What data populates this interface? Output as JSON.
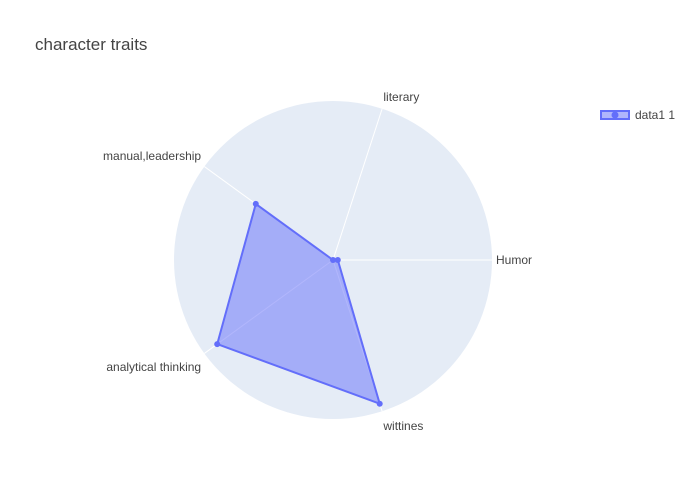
{
  "chart_data": {
    "type": "radar",
    "title": "character traits",
    "categories": [
      "Humor",
      "literary",
      "manual,leadership",
      "analytical thinking",
      "wittines"
    ],
    "series": [
      {
        "name": "data1 1",
        "values": [
          0.03,
          0.0,
          0.6,
          0.9,
          0.95
        ]
      }
    ],
    "radial_range": [
      0,
      1
    ],
    "angular_start_deg": 0,
    "angular_step_deg": 72,
    "legend_position": "top-right",
    "colors": {
      "background": "#e5ecf6",
      "gridline": "#ffffff",
      "series_line": "#636efa",
      "series_fill": "rgba(99,110,250,0.5)"
    }
  }
}
